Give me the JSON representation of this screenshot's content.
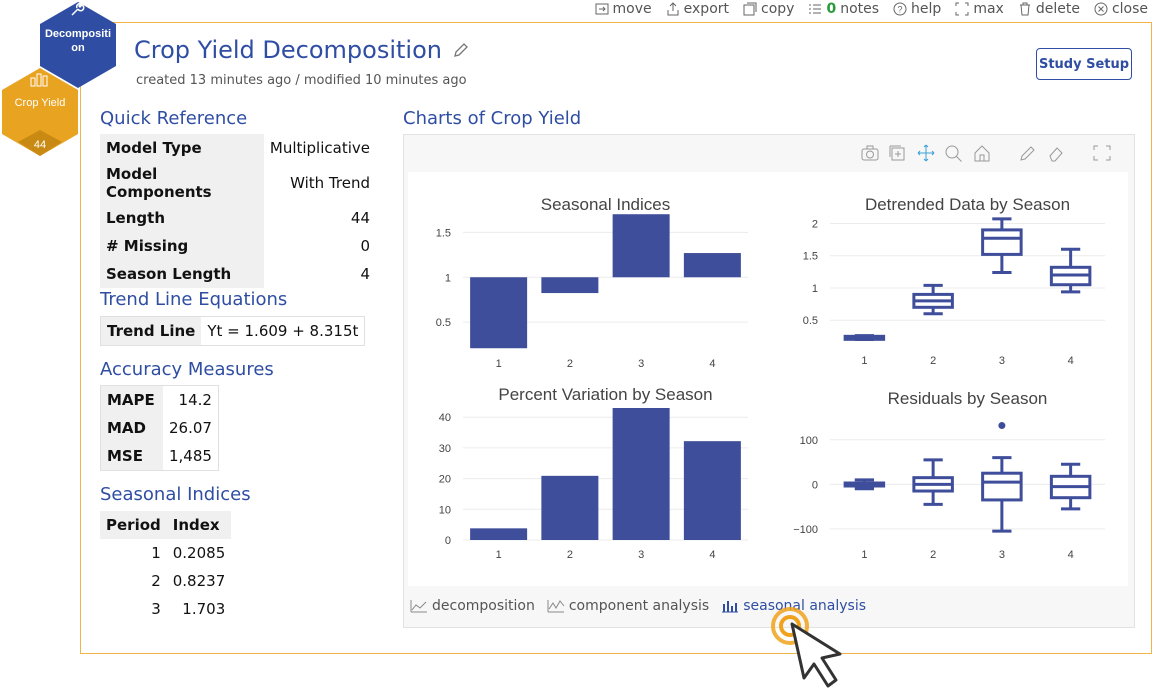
{
  "toolbar": {
    "move": "move",
    "export": "export",
    "copy": "copy",
    "notes_count": "0",
    "notes": "notes",
    "help": "help",
    "max": "max",
    "delete": "delete",
    "close": "close"
  },
  "hex": {
    "decomposition": "Decompositi on",
    "crop_yield": "Crop Yield",
    "count": "44"
  },
  "header": {
    "title": "Crop Yield Decomposition",
    "meta": "created 13 minutes ago / modified 10 minutes ago",
    "study_setup": "Study Setup"
  },
  "quick_reference": {
    "heading": "Quick Reference",
    "rows": [
      {
        "k": "Model Type",
        "v": "Multiplicative"
      },
      {
        "k": "Model Components",
        "v": "With Trend"
      },
      {
        "k": "Length",
        "v": "44"
      },
      {
        "k": "# Missing",
        "v": "0"
      },
      {
        "k": "Season Length",
        "v": "4"
      }
    ]
  },
  "trend": {
    "heading": "Trend Line Equations",
    "label": "Trend Line",
    "equation": "Yt = 1.609 + 8.315t"
  },
  "accuracy": {
    "heading": "Accuracy Measures",
    "rows": [
      {
        "k": "MAPE",
        "v": "14.2"
      },
      {
        "k": "MAD",
        "v": "26.07"
      },
      {
        "k": "MSE",
        "v": "1,485"
      }
    ]
  },
  "seasonal": {
    "heading": "Seasonal Indices",
    "col_period": "Period",
    "col_index": "Index",
    "rows": [
      {
        "p": "1",
        "i": "0.2085"
      },
      {
        "p": "2",
        "i": "0.8237"
      },
      {
        "p": "3",
        "i": "1.703"
      }
    ]
  },
  "charts_heading": "Charts of Crop Yield",
  "tabs": {
    "decomposition": "decomposition",
    "component": "component analysis",
    "seasonal": "seasonal analysis"
  },
  "colors": {
    "accent": "#2f4ea3",
    "bar": "#3f4e9b",
    "hex_blue": "#2f4ea3",
    "hex_orange": "#e8a321",
    "border": "#f0b44a"
  },
  "chart_data": [
    {
      "type": "bar",
      "title": "Seasonal Indices",
      "categories": [
        "1",
        "2",
        "3",
        "4"
      ],
      "values": [
        0.2085,
        0.8237,
        1.703,
        1.27
      ],
      "ylim": [
        0.2,
        1.75
      ],
      "yticks": [
        "0.5",
        "1",
        "1.5"
      ],
      "baseline": 1
    },
    {
      "type": "box",
      "title": "Detrended Data by Season",
      "categories": [
        "1",
        "2",
        "3",
        "4"
      ],
      "boxes": [
        {
          "min": 0.2,
          "q1": 0.22,
          "med": 0.235,
          "q3": 0.25,
          "max": 0.26
        },
        {
          "min": 0.6,
          "q1": 0.7,
          "med": 0.8,
          "q3": 0.9,
          "max": 1.04
        },
        {
          "min": 1.24,
          "q1": 1.52,
          "med": 1.77,
          "q3": 1.9,
          "max": 2.07
        },
        {
          "min": 0.94,
          "q1": 1.05,
          "med": 1.2,
          "q3": 1.32,
          "max": 1.6
        }
      ],
      "ylim": [
        0.1,
        2.1
      ],
      "yticks": [
        "0.5",
        "1",
        "1.5",
        "2"
      ]
    },
    {
      "type": "bar",
      "title": "Percent Variation by Season",
      "categories": [
        "1",
        "2",
        "3",
        "4"
      ],
      "values": [
        3.8,
        20.9,
        43,
        32.2
      ],
      "ylim": [
        0,
        43
      ],
      "yticks": [
        "0",
        "10",
        "20",
        "30",
        "40"
      ]
    },
    {
      "type": "box",
      "title": "Residuals by Season",
      "categories": [
        "1",
        "2",
        "3",
        "4"
      ],
      "boxes": [
        {
          "min": -10,
          "q1": -3,
          "med": 0,
          "q3": 3,
          "max": 10
        },
        {
          "min": -45,
          "q1": -15,
          "med": 0,
          "q3": 15,
          "max": 55
        },
        {
          "min": -105,
          "q1": -35,
          "med": 5,
          "q3": 25,
          "max": 60
        },
        {
          "min": -55,
          "q1": -30,
          "med": -5,
          "q3": 18,
          "max": 45
        }
      ],
      "outliers": [
        {
          "cat": "3",
          "y": 132
        }
      ],
      "ylim": [
        -125,
        140
      ],
      "yticks": [
        "100",
        "0",
        "−100"
      ]
    }
  ]
}
